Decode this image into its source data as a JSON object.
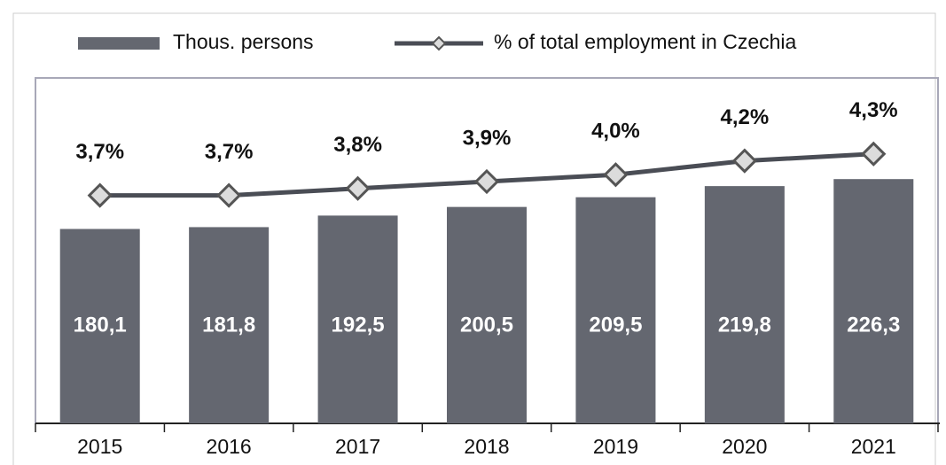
{
  "chart_data": {
    "type": "bar",
    "categories": [
      "2015",
      "2016",
      "2017",
      "2018",
      "2019",
      "2020",
      "2021"
    ],
    "series": [
      {
        "name": "Thous. persons",
        "type": "bar",
        "color": "#646770",
        "values": [
          180.1,
          181.8,
          192.5,
          200.5,
          209.5,
          219.8,
          226.3
        ],
        "value_labels": [
          "180,1",
          "181,8",
          "192,5",
          "200,5",
          "209,5",
          "219,8",
          "226,3"
        ]
      },
      {
        "name": "% of total employment in Czechia",
        "type": "line",
        "axis": "y2",
        "color": "#4a4d55",
        "values": [
          3.7,
          3.7,
          3.8,
          3.9,
          4.0,
          4.2,
          4.3
        ],
        "value_labels": [
          "3,7%",
          "3,7%",
          "3,8%",
          "3,9%",
          "4,0%",
          "4,2%",
          "4,3%"
        ]
      }
    ],
    "ylim": [
      0,
      320
    ],
    "y2lim": [
      0.4,
      5.4
    ],
    "grid": false,
    "legend": "top"
  }
}
